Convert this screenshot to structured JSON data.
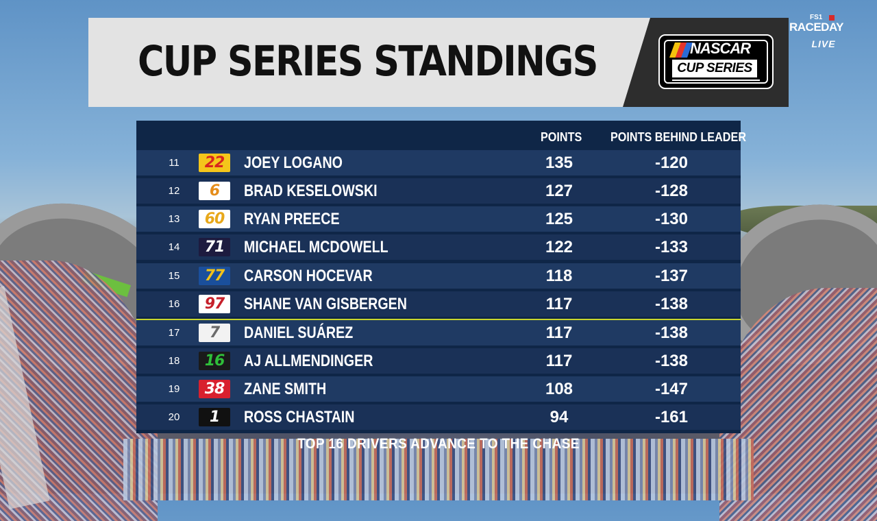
{
  "header": {
    "title": "CUP SERIES STANDINGS",
    "logo_top": "NASCAR",
    "logo_bottom": "CUP SERIES"
  },
  "network": {
    "small": "FS1",
    "name": "RACEDAY",
    "status": "LIVE"
  },
  "columns": {
    "points": "POINTS",
    "behind": "POINTS BEHIND LEADER"
  },
  "rows": [
    {
      "pos": "11",
      "car": "22",
      "driver": "JOEY LOGANO",
      "points": "135",
      "behind": "-120",
      "badge_bg": "#f4c61b",
      "badge_fg": "#d8261e"
    },
    {
      "pos": "12",
      "car": "6",
      "driver": "BRAD KESELOWSKI",
      "points": "127",
      "behind": "-128",
      "badge_bg": "#ffffff",
      "badge_fg": "#e58d1a"
    },
    {
      "pos": "13",
      "car": "60",
      "driver": "RYAN PREECE",
      "points": "125",
      "behind": "-130",
      "badge_bg": "#ffffff",
      "badge_fg": "#e8a81a"
    },
    {
      "pos": "14",
      "car": "71",
      "driver": "MICHAEL MCDOWELL",
      "points": "122",
      "behind": "-133",
      "badge_bg": "#1d1b3f",
      "badge_fg": "#ffffff"
    },
    {
      "pos": "15",
      "car": "77",
      "driver": "CARSON HOCEVAR",
      "points": "118",
      "behind": "-137",
      "badge_bg": "#1a4f9c",
      "badge_fg": "#f2c21a"
    },
    {
      "pos": "16",
      "car": "97",
      "driver": "SHANE VAN GISBERGEN",
      "points": "117",
      "behind": "-138",
      "badge_bg": "#ffffff",
      "badge_fg": "#c6202b"
    },
    {
      "pos": "17",
      "car": "7",
      "driver": "DANIEL SUÁREZ",
      "points": "117",
      "behind": "-138",
      "badge_bg": "#f2f2f2",
      "badge_fg": "#6a6a6a"
    },
    {
      "pos": "18",
      "car": "16",
      "driver": "AJ ALLMENDINGER",
      "points": "117",
      "behind": "-138",
      "badge_bg": "#1a1a1a",
      "badge_fg": "#2fbf3a"
    },
    {
      "pos": "19",
      "car": "38",
      "driver": "ZANE SMITH",
      "points": "108",
      "behind": "-147",
      "badge_bg": "#d8202e",
      "badge_fg": "#ffffff"
    },
    {
      "pos": "20",
      "car": "1",
      "driver": "ROSS CHASTAIN",
      "points": "94",
      "behind": "-161",
      "badge_bg": "#111111",
      "badge_fg": "#ffffff"
    }
  ],
  "footer": "TOP 16 DRIVERS ADVANCE TO THE CHASE",
  "colors": {
    "panel": "#0f2647",
    "row": "#1f3a63",
    "row_alt": "#1a3157",
    "cutline": "#c9d62c"
  }
}
